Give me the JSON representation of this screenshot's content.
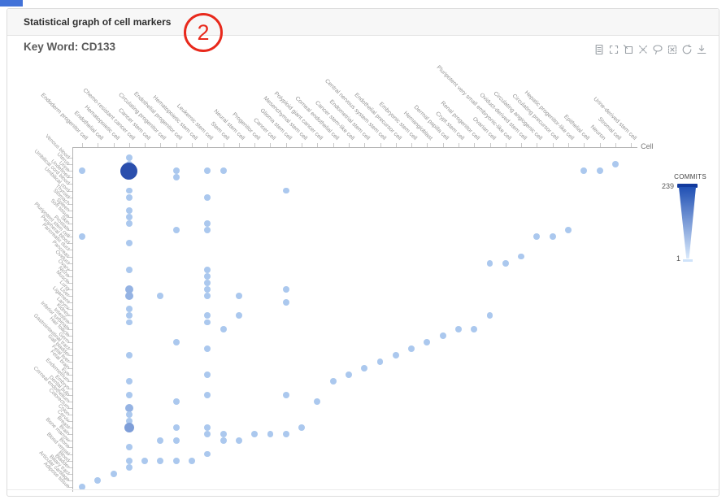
{
  "page": {
    "accent_color": "#4272d8"
  },
  "panel": {
    "title": "Statistical graph of cell markers",
    "keyword_label": "Key Word: CD133",
    "annotation_number": "2"
  },
  "toolbar": {
    "icons": [
      "data-view-icon",
      "zoom-select-icon",
      "zoom-reset-icon",
      "clear-selection-icon",
      "lasso-select-icon",
      "deselect-icon",
      "restore-icon",
      "download-icon"
    ]
  },
  "legend": {
    "title": "COMMITS",
    "max": "239",
    "min": "1",
    "color_dark": "#123a9e",
    "color_light": "#d9e9fb"
  },
  "chart_data": {
    "type": "scatter",
    "title": "Statistical graph of cell markers",
    "keyword": "CD133",
    "x_axis_name": "Cell",
    "legend": {
      "name": "COMMITS",
      "max": 239,
      "min": 1
    },
    "point_color_light": "#b8d4f5",
    "point_color_dark": "#2b4fad",
    "x_categories": [
      "Endoderm progenitor cell",
      "Endothelial cell",
      "Hematopoietic cell",
      "Chemo-resistant cancer cell",
      "Cancer stem cell",
      "Circulating progenitor cell",
      "Endothelial progenitor cell",
      "Hematopoietic stem cell",
      "Leukemic stem cell",
      "Stem cell",
      "Neural stem cell",
      "Progenitor cell",
      "Cancer cell",
      "Glioma stem cell",
      "Mesenchymal stem cell",
      "Polyploid giant cancer cell",
      "Corneal endothelial cell",
      "Cancer stem-like cell",
      "Endometrial stem cell",
      "Central nervous system stem cell",
      "Endothelial precursor cell",
      "Embryonic stem cell",
      "Hemangioblast",
      "Dermal papilla cell",
      "Crypt stem cell",
      "Renal progenitor cell",
      "Ovarian cell",
      "Pluripotent very small embryonic-like cell",
      "Oviduct-derived stem cell",
      "Circulating angiogenic cell",
      "Circulating precursor cell",
      "Hepatic progenitor-like cell",
      "Epithelial cell",
      "Neuron",
      "Stromal cell",
      "Urine-derived stem cell"
    ],
    "y_categories": [
      "Venous blood",
      "Uterus",
      "Urine",
      "Undefined",
      "Umbilical cord blood",
      "Umbilical cord",
      "Thyroid",
      "Stomach",
      "Spleen",
      "Soft tissue",
      "Skin",
      "Prostate",
      "Pluripotent stem cell",
      "Peripheral blood",
      "Pancreatic duct",
      "Pancreas",
      "Oviduct",
      "Ovary",
      "Niche",
      "Muscle",
      "Lung",
      "Liver",
      "Ligament",
      "Larynx",
      "Kidney",
      "Intestine",
      "Inferior turbinate",
      "Hair follicle",
      "Germ",
      "Gastrointestinal tract",
      "Gall bladder",
      "Fetal liver",
      "Fetal brain",
      "Eye",
      "Endometrium",
      "Embryo",
      "Dental pulp",
      "Corneal endothelium",
      "Colorectum",
      "Colon",
      "Cervix",
      "Breast",
      "Brain",
      "Bone marrow",
      "Bone",
      "Blood vessel",
      "Blood",
      "Bladder",
      "Biliary tract",
      "Articular cartilage",
      "Adipose tissue"
    ],
    "points_format": "[x_index, y_index, commits]",
    "points": [
      [
        0,
        2,
        2
      ],
      [
        0,
        12,
        2
      ],
      [
        0,
        50,
        2
      ],
      [
        1,
        49,
        2
      ],
      [
        2,
        48,
        2
      ],
      [
        3,
        0,
        2
      ],
      [
        3,
        1,
        2
      ],
      [
        3,
        2,
        239
      ],
      [
        3,
        5,
        2
      ],
      [
        3,
        6,
        2
      ],
      [
        3,
        8,
        2
      ],
      [
        3,
        9,
        2
      ],
      [
        3,
        10,
        2
      ],
      [
        3,
        13,
        2
      ],
      [
        3,
        17,
        2
      ],
      [
        3,
        20,
        15
      ],
      [
        3,
        21,
        15
      ],
      [
        3,
        23,
        2
      ],
      [
        3,
        24,
        2
      ],
      [
        3,
        25,
        2
      ],
      [
        3,
        30,
        2
      ],
      [
        3,
        34,
        2
      ],
      [
        3,
        36,
        2
      ],
      [
        3,
        38,
        15
      ],
      [
        3,
        39,
        2
      ],
      [
        3,
        40,
        2
      ],
      [
        3,
        41,
        40
      ],
      [
        3,
        44,
        2
      ],
      [
        3,
        46,
        2
      ],
      [
        3,
        47,
        2
      ],
      [
        4,
        46,
        2
      ],
      [
        5,
        21,
        2
      ],
      [
        5,
        43,
        2
      ],
      [
        5,
        46,
        2
      ],
      [
        6,
        2,
        2
      ],
      [
        6,
        3,
        2
      ],
      [
        6,
        11,
        2
      ],
      [
        6,
        28,
        2
      ],
      [
        6,
        37,
        2
      ],
      [
        6,
        41,
        2
      ],
      [
        6,
        43,
        2
      ],
      [
        6,
        46,
        2
      ],
      [
        7,
        46,
        2
      ],
      [
        8,
        2,
        2
      ],
      [
        8,
        6,
        2
      ],
      [
        8,
        10,
        2
      ],
      [
        8,
        11,
        2
      ],
      [
        8,
        17,
        2
      ],
      [
        8,
        18,
        2
      ],
      [
        8,
        19,
        2
      ],
      [
        8,
        20,
        2
      ],
      [
        8,
        21,
        2
      ],
      [
        8,
        24,
        2
      ],
      [
        8,
        25,
        2
      ],
      [
        8,
        29,
        2
      ],
      [
        8,
        33,
        2
      ],
      [
        8,
        36,
        2
      ],
      [
        8,
        41,
        2
      ],
      [
        8,
        42,
        2
      ],
      [
        8,
        45,
        2
      ],
      [
        9,
        2,
        2
      ],
      [
        9,
        26,
        2
      ],
      [
        9,
        42,
        2
      ],
      [
        9,
        43,
        2
      ],
      [
        10,
        21,
        2
      ],
      [
        10,
        24,
        2
      ],
      [
        10,
        43,
        2
      ],
      [
        11,
        42,
        2
      ],
      [
        12,
        42,
        2
      ],
      [
        13,
        5,
        2
      ],
      [
        13,
        20,
        2
      ],
      [
        13,
        22,
        2
      ],
      [
        13,
        36,
        2
      ],
      [
        13,
        42,
        2
      ],
      [
        14,
        41,
        2
      ],
      [
        15,
        37,
        2
      ],
      [
        16,
        34,
        2
      ],
      [
        17,
        33,
        2
      ],
      [
        18,
        32,
        2
      ],
      [
        19,
        31,
        2
      ],
      [
        20,
        30,
        2
      ],
      [
        21,
        29,
        2
      ],
      [
        22,
        28,
        2
      ],
      [
        23,
        27,
        2
      ],
      [
        24,
        26,
        2
      ],
      [
        25,
        26,
        2
      ],
      [
        26,
        16,
        2
      ],
      [
        26,
        24,
        2
      ],
      [
        27,
        16,
        2
      ],
      [
        28,
        15,
        2
      ],
      [
        29,
        12,
        2
      ],
      [
        30,
        12,
        2
      ],
      [
        31,
        11,
        2
      ],
      [
        32,
        2,
        2
      ],
      [
        33,
        2,
        2
      ],
      [
        34,
        1,
        2
      ]
    ]
  }
}
